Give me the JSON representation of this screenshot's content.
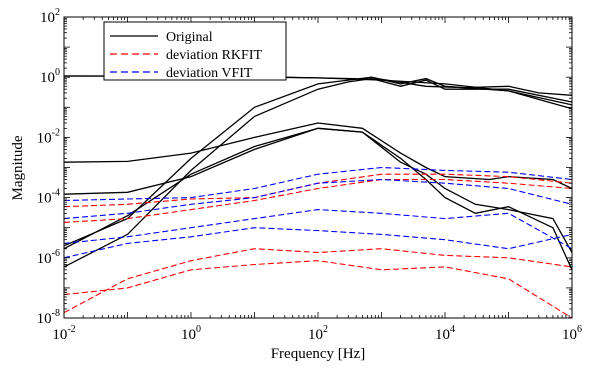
{
  "chart_data": {
    "type": "line",
    "title": "",
    "xlabel": "Frequency [Hz]",
    "ylabel": "Magnitude",
    "xscale": "log",
    "yscale": "log",
    "xlim": [
      0.01,
      1000000
    ],
    "ylim": [
      1e-08,
      100
    ],
    "x_tick_values": [
      0.01,
      1,
      100,
      10000,
      1000000
    ],
    "x_tick_labels": [
      {
        "base": "10",
        "exp": "-2"
      },
      {
        "base": "10",
        "exp": "0"
      },
      {
        "base": "10",
        "exp": "2"
      },
      {
        "base": "10",
        "exp": "4"
      },
      {
        "base": "10",
        "exp": "6"
      }
    ],
    "y_tick_values": [
      1e-08,
      1e-06,
      0.0001,
      0.01,
      1,
      100
    ],
    "y_tick_labels": [
      {
        "base": "10",
        "exp": "-8"
      },
      {
        "base": "10",
        "exp": "-6"
      },
      {
        "base": "10",
        "exp": "-4"
      },
      {
        "base": "10",
        "exp": "-2"
      },
      {
        "base": "10",
        "exp": "0"
      },
      {
        "base": "10",
        "exp": "2"
      }
    ],
    "grid": false,
    "legend_position": "top-left",
    "legend": [
      {
        "label": "Original",
        "color": "#000000",
        "style": "solid"
      },
      {
        "label": "deviation RKFIT",
        "color": "#ff0000",
        "style": "dashed"
      },
      {
        "label": "deviation VFIT",
        "color": "#0000ff",
        "style": "dashed"
      }
    ],
    "series": [
      {
        "group": "Original",
        "color": "#000000",
        "style": "solid",
        "points": [
          [
            0.01,
            1.1
          ],
          [
            1,
            1.1
          ],
          [
            10,
            1.05
          ],
          [
            100,
            0.95
          ],
          [
            1000,
            0.8
          ],
          [
            10000,
            0.6
          ],
          [
            100000,
            0.35
          ],
          [
            1000000,
            0.09
          ]
        ]
      },
      {
        "group": "Original",
        "color": "#000000",
        "style": "solid",
        "points": [
          [
            0.01,
            1.1
          ],
          [
            1,
            1.08
          ],
          [
            100,
            0.95
          ],
          [
            1000,
            0.85
          ],
          [
            5000,
            0.5
          ],
          [
            20000,
            0.45
          ],
          [
            100000,
            0.5
          ],
          [
            300000,
            0.3
          ],
          [
            1000000,
            0.25
          ]
        ]
      },
      {
        "group": "Original",
        "color": "#000000",
        "style": "solid",
        "points": [
          [
            0.01,
            2.5e-06
          ],
          [
            0.1,
            2e-05
          ],
          [
            1,
            0.002
          ],
          [
            10,
            0.1
          ],
          [
            100,
            0.6
          ],
          [
            300,
            0.8
          ],
          [
            700,
            1.0
          ],
          [
            2000,
            0.6
          ],
          [
            5000,
            0.9
          ],
          [
            10000,
            0.5
          ],
          [
            100000,
            0.35
          ],
          [
            1000000,
            0.12
          ]
        ]
      },
      {
        "group": "Original",
        "color": "#000000",
        "style": "solid",
        "points": [
          [
            0.01,
            5e-07
          ],
          [
            0.1,
            6e-06
          ],
          [
            1,
            0.0008
          ],
          [
            10,
            0.05
          ],
          [
            100,
            0.4
          ],
          [
            300,
            0.7
          ],
          [
            700,
            0.9
          ],
          [
            2000,
            0.5
          ],
          [
            5000,
            0.8
          ],
          [
            10000,
            0.4
          ],
          [
            100000,
            0.4
          ],
          [
            1000000,
            0.15
          ]
        ]
      },
      {
        "group": "Original",
        "color": "#000000",
        "style": "solid",
        "points": [
          [
            0.01,
            0.0015
          ],
          [
            0.1,
            0.0016
          ],
          [
            1,
            0.003
          ],
          [
            10,
            0.01
          ],
          [
            100,
            0.03
          ],
          [
            500,
            0.02
          ],
          [
            2000,
            0.003
          ],
          [
            5000,
            0.001
          ],
          [
            10000,
            0.0005
          ],
          [
            50000,
            0.0004
          ],
          [
            100000,
            0.0005
          ],
          [
            500000,
            0.0004
          ],
          [
            1000000,
            0.0002
          ]
        ]
      },
      {
        "group": "Original",
        "color": "#000000",
        "style": "solid",
        "points": [
          [
            0.01,
            0.00013
          ],
          [
            0.1,
            0.00015
          ],
          [
            1,
            0.0005
          ],
          [
            10,
            0.004
          ],
          [
            100,
            0.02
          ],
          [
            500,
            0.015
          ],
          [
            2000,
            0.0015
          ],
          [
            5000,
            0.0006
          ],
          [
            10000,
            0.0002
          ],
          [
            30000,
            6e-05
          ],
          [
            100000,
            4e-05
          ],
          [
            500000,
            2e-05
          ],
          [
            1000000,
            1.5e-06
          ]
        ]
      },
      {
        "group": "Original",
        "color": "#000000",
        "style": "solid",
        "points": [
          [
            0.01,
            2e-06
          ],
          [
            0.1,
            2.5e-05
          ],
          [
            1,
            0.0006
          ],
          [
            10,
            0.005
          ],
          [
            100,
            0.02
          ],
          [
            500,
            0.015
          ],
          [
            2000,
            0.002
          ],
          [
            5000,
            0.0004
          ],
          [
            10000,
            0.0001
          ],
          [
            30000,
            3e-05
          ],
          [
            100000,
            5e-05
          ],
          [
            500000,
            1e-05
          ],
          [
            1000000,
            4e-07
          ]
        ]
      },
      {
        "group": "deviation RKFIT",
        "color": "#ff0000",
        "style": "dashed",
        "points": [
          [
            0.01,
            5e-05
          ],
          [
            0.1,
            6e-05
          ],
          [
            1,
            9e-05
          ],
          [
            10,
            0.0001
          ],
          [
            100,
            0.0003
          ],
          [
            1000,
            0.0006
          ],
          [
            10000,
            0.0006
          ],
          [
            100000,
            0.0005
          ],
          [
            1000000,
            0.0003
          ]
        ]
      },
      {
        "group": "deviation RKFIT",
        "color": "#ff0000",
        "style": "dashed",
        "points": [
          [
            0.01,
            1.5e-05
          ],
          [
            0.1,
            2e-05
          ],
          [
            1,
            4e-05
          ],
          [
            10,
            8e-05
          ],
          [
            100,
            0.0002
          ],
          [
            1000,
            0.0004
          ],
          [
            10000,
            0.0004
          ],
          [
            100000,
            0.0003
          ],
          [
            1000000,
            0.0002
          ]
        ]
      },
      {
        "group": "deviation RKFIT",
        "color": "#ff0000",
        "style": "dashed",
        "points": [
          [
            0.01,
            1.5e-08
          ],
          [
            0.1,
            2e-07
          ],
          [
            1,
            8e-07
          ],
          [
            10,
            2e-06
          ],
          [
            100,
            1.5e-06
          ],
          [
            1000,
            2e-06
          ],
          [
            10000,
            1.2e-06
          ],
          [
            100000,
            1e-06
          ],
          [
            1000000,
            5e-07
          ]
        ]
      },
      {
        "group": "deviation RKFIT",
        "color": "#ff0000",
        "style": "dashed",
        "points": [
          [
            0.01,
            6e-08
          ],
          [
            0.1,
            1e-07
          ],
          [
            1,
            4e-07
          ],
          [
            10,
            6e-07
          ],
          [
            100,
            8e-07
          ],
          [
            1000,
            4e-07
          ],
          [
            10000,
            5e-07
          ],
          [
            100000,
            2e-07
          ],
          [
            1000000,
            1e-08
          ]
        ]
      },
      {
        "group": "deviation VFIT",
        "color": "#0000ff",
        "style": "dashed",
        "points": [
          [
            0.01,
            8e-05
          ],
          [
            0.1,
            9e-05
          ],
          [
            1,
            0.0001
          ],
          [
            10,
            0.0002
          ],
          [
            100,
            0.0006
          ],
          [
            1000,
            0.001
          ],
          [
            10000,
            0.0008
          ],
          [
            100000,
            0.0007
          ],
          [
            1000000,
            0.0004
          ]
        ]
      },
      {
        "group": "deviation VFIT",
        "color": "#0000ff",
        "style": "dashed",
        "points": [
          [
            0.01,
            3e-06
          ],
          [
            0.1,
            5e-06
          ],
          [
            1,
            1e-05
          ],
          [
            10,
            2e-05
          ],
          [
            100,
            4e-05
          ],
          [
            1000,
            3e-05
          ],
          [
            10000,
            2e-05
          ],
          [
            100000,
            3e-05
          ],
          [
            1000000,
            2e-06
          ]
        ]
      },
      {
        "group": "deviation VFIT",
        "color": "#0000ff",
        "style": "dashed",
        "points": [
          [
            0.01,
            2e-05
          ],
          [
            0.1,
            3e-05
          ],
          [
            1,
            6e-05
          ],
          [
            10,
            0.0001
          ],
          [
            100,
            0.0003
          ],
          [
            1000,
            0.0004
          ],
          [
            10000,
            0.0003
          ],
          [
            100000,
            0.0002
          ],
          [
            1000000,
            6e-05
          ]
        ]
      },
      {
        "group": "deviation VFIT",
        "color": "#0000ff",
        "style": "dashed",
        "points": [
          [
            0.01,
            1e-06
          ],
          [
            0.1,
            3e-06
          ],
          [
            1,
            5e-06
          ],
          [
            10,
            1e-05
          ],
          [
            100,
            8e-06
          ],
          [
            1000,
            6e-06
          ],
          [
            10000,
            4e-06
          ],
          [
            100000,
            2e-06
          ],
          [
            1000000,
            6e-06
          ]
        ]
      }
    ]
  }
}
